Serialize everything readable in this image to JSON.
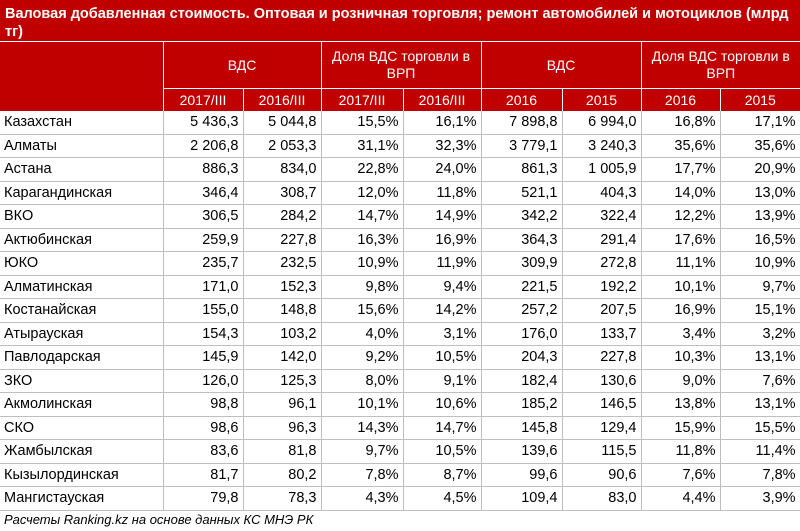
{
  "title": "Валовая добавленная стоимость. Оптовая и розничная торговля; ремонт автомобилей и мотоциклов (млрд тг)",
  "groups": [
    "ВДС",
    "Доля ВДС торговли в ВРП",
    "ВДС",
    "Доля ВДС торговли в ВРП"
  ],
  "columns": [
    "2017/III",
    "2016/III",
    "2017/III",
    "2016/III",
    "2016",
    "2015",
    "2016",
    "2015"
  ],
  "rows": [
    {
      "name": "Казахстан",
      "values": [
        "5 436,3",
        "5 044,8",
        "15,5%",
        "16,1%",
        "7 898,8",
        "6 994,0",
        "16,8%",
        "17,1%"
      ]
    },
    {
      "name": "Алматы",
      "values": [
        "2 206,8",
        "2 053,3",
        "31,1%",
        "32,3%",
        "3 779,1",
        "3 240,3",
        "35,6%",
        "35,6%"
      ]
    },
    {
      "name": "Астана",
      "values": [
        "886,3",
        "834,0",
        "22,8%",
        "24,0%",
        "861,3",
        "1 005,9",
        "17,7%",
        "20,9%"
      ]
    },
    {
      "name": "Карагандинская",
      "values": [
        "346,4",
        "308,7",
        "12,0%",
        "11,8%",
        "521,1",
        "404,3",
        "14,0%",
        "13,0%"
      ]
    },
    {
      "name": "ВКО",
      "values": [
        "306,5",
        "284,2",
        "14,7%",
        "14,9%",
        "342,2",
        "322,4",
        "12,2%",
        "13,9%"
      ]
    },
    {
      "name": "Актюбинская",
      "values": [
        "259,9",
        "227,8",
        "16,3%",
        "16,9%",
        "364,3",
        "291,4",
        "17,6%",
        "16,5%"
      ]
    },
    {
      "name": "ЮКО",
      "values": [
        "235,7",
        "232,5",
        "10,9%",
        "11,9%",
        "309,9",
        "272,8",
        "11,1%",
        "10,9%"
      ]
    },
    {
      "name": "Алматинская",
      "values": [
        "171,0",
        "152,3",
        "9,8%",
        "9,4%",
        "221,5",
        "192,2",
        "10,1%",
        "9,7%"
      ]
    },
    {
      "name": "Костанайская",
      "values": [
        "155,0",
        "148,8",
        "15,6%",
        "14,2%",
        "257,2",
        "207,5",
        "16,9%",
        "15,1%"
      ]
    },
    {
      "name": "Атырауская",
      "values": [
        "154,3",
        "103,2",
        "4,0%",
        "3,1%",
        "176,0",
        "133,7",
        "3,4%",
        "3,2%"
      ]
    },
    {
      "name": "Павлодарская",
      "values": [
        "145,9",
        "142,0",
        "9,2%",
        "10,5%",
        "204,3",
        "227,8",
        "10,3%",
        "13,1%"
      ]
    },
    {
      "name": "ЗКО",
      "values": [
        "126,0",
        "125,3",
        "8,0%",
        "9,1%",
        "182,4",
        "130,6",
        "9,0%",
        "7,6%"
      ]
    },
    {
      "name": "Акмолинская",
      "values": [
        "98,8",
        "96,1",
        "10,1%",
        "10,6%",
        "185,2",
        "146,5",
        "13,8%",
        "13,1%"
      ]
    },
    {
      "name": "СКО",
      "values": [
        "98,6",
        "96,3",
        "14,3%",
        "14,7%",
        "145,8",
        "129,4",
        "15,9%",
        "15,5%"
      ]
    },
    {
      "name": "Жамбылская",
      "values": [
        "83,6",
        "81,8",
        "9,7%",
        "10,5%",
        "139,6",
        "115,5",
        "11,8%",
        "11,4%"
      ]
    },
    {
      "name": "Кызылординская",
      "values": [
        "81,7",
        "80,2",
        "7,8%",
        "8,7%",
        "99,6",
        "90,6",
        "7,6%",
        "7,8%"
      ]
    },
    {
      "name": "Мангистауская",
      "values": [
        "79,8",
        "78,3",
        "4,3%",
        "4,5%",
        "109,4",
        "83,0",
        "4,4%",
        "3,9%"
      ]
    }
  ],
  "footer": "Расчеты Ranking.kz на основе данных КС МНЭ РК",
  "colors": {
    "header_bg": "#c00000",
    "header_text": "#ffffff",
    "grid": "#bfbfbf"
  }
}
